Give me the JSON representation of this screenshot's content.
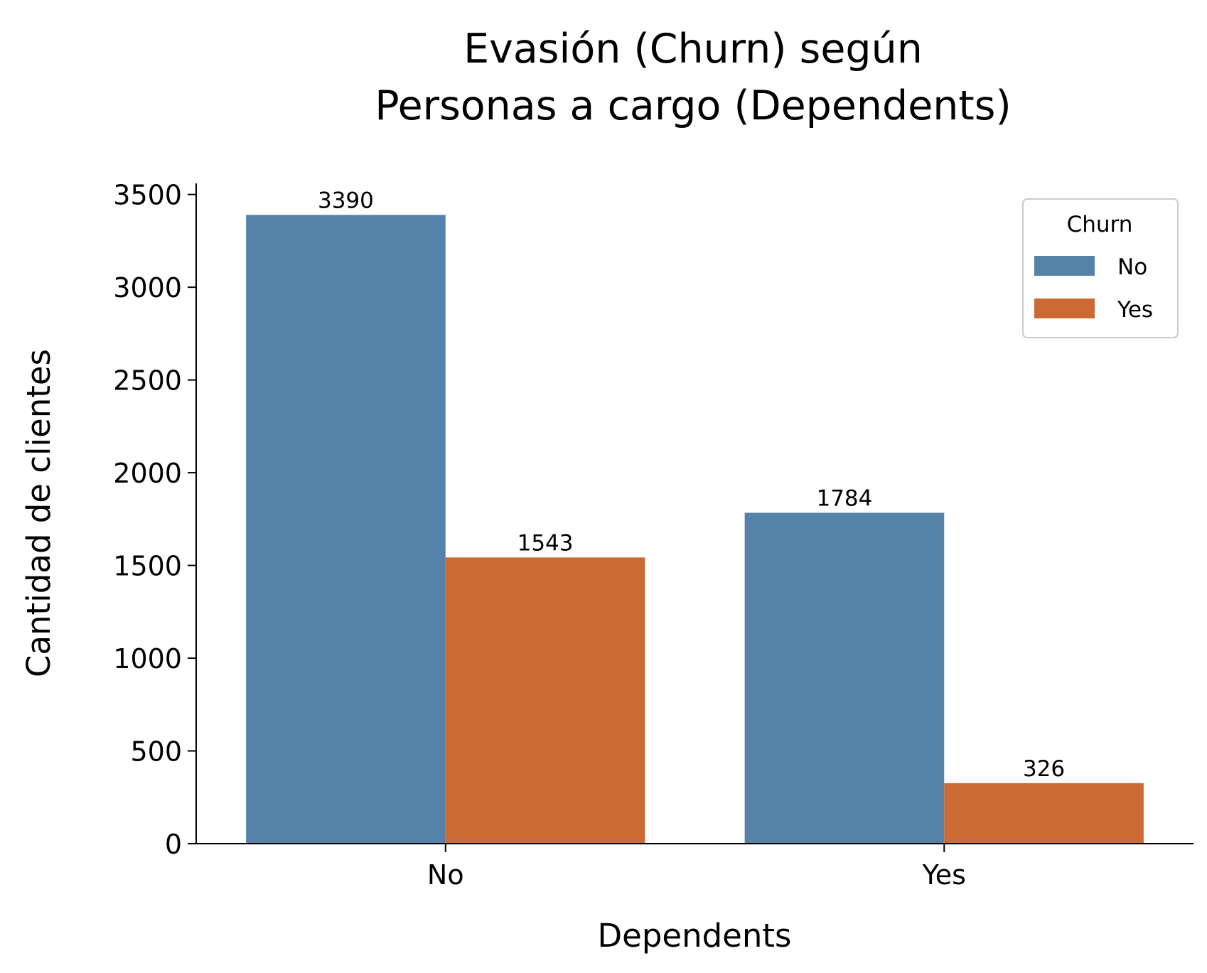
{
  "chart_data": {
    "type": "bar",
    "title_lines": [
      "Evasión (Churn) según",
      "Personas a cargo (Dependents)"
    ],
    "xlabel": "Dependents",
    "ylabel": "Cantidad de clientes",
    "categories": [
      "No",
      "Yes"
    ],
    "series": [
      {
        "name": "No",
        "values": [
          3390,
          1784
        ],
        "labels": [
          "3390",
          "1784"
        ],
        "color": "#5582a8"
      },
      {
        "name": "Yes",
        "values": [
          1543,
          326
        ],
        "labels": [
          "1543",
          "326"
        ],
        "color": "#cc6a36"
      }
    ],
    "ylim": [
      0,
      3560
    ],
    "yticks": [
      0,
      500,
      1000,
      1500,
      2000,
      2500,
      3000,
      3500
    ],
    "ytick_labels": [
      "0",
      "500",
      "1000",
      "1500",
      "2000",
      "2500",
      "3000",
      "3500"
    ],
    "legend": {
      "title": "Churn",
      "placement": "top-right"
    },
    "grid": false
  }
}
